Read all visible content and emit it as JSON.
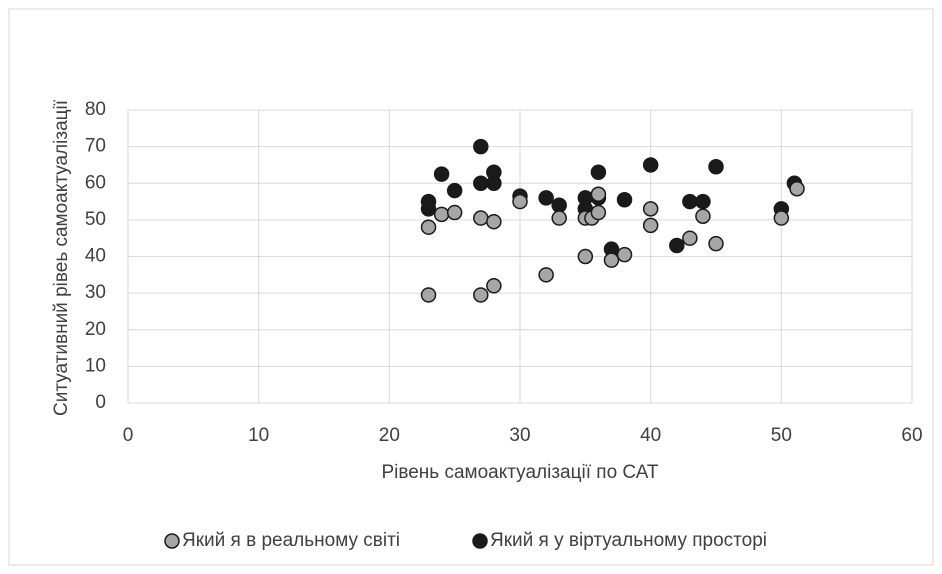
{
  "chart_data": {
    "type": "scatter",
    "xlabel": "Рівень самоактуалізації по САТ",
    "ylabel": "Ситуативний рівеь самоактуалізації",
    "xlim": [
      0,
      60
    ],
    "xticks": [
      0,
      10,
      20,
      30,
      40,
      50,
      60
    ],
    "ylim": [
      0,
      80
    ],
    "yticks": [
      0,
      10,
      20,
      30,
      40,
      50,
      60,
      70,
      80
    ],
    "grid": true,
    "legend": "bottom",
    "series": [
      {
        "name": "Який я в реальному світі",
        "color": "#a6a6a6",
        "x": [
          23,
          23,
          24,
          25,
          27,
          27,
          28,
          28,
          30,
          32,
          33,
          35,
          35,
          35.5,
          36,
          36,
          37,
          38,
          40,
          40,
          43,
          44,
          45,
          50,
          51.2
        ],
        "values": [
          29.5,
          48,
          51.5,
          52,
          29.5,
          50.5,
          32,
          49.5,
          55,
          35,
          50.5,
          40,
          50.5,
          50.5,
          57,
          52,
          39,
          40.5,
          48.5,
          53,
          45,
          51,
          43.5,
          50.5,
          58.5
        ]
      },
      {
        "name": "Який я у віртуальному просторі",
        "color": "#1a1a1a",
        "x": [
          23,
          23,
          24,
          25,
          27,
          27,
          28,
          28,
          30,
          32,
          33,
          35,
          35,
          36,
          36,
          37,
          38,
          40,
          42,
          43,
          44,
          45,
          50,
          51
        ],
        "values": [
          55,
          53,
          62.5,
          58,
          70,
          60,
          63,
          60,
          56.5,
          56,
          54,
          56,
          53,
          56,
          63,
          42,
          55.5,
          65,
          43,
          55,
          55,
          64.5,
          53,
          60
        ]
      }
    ]
  }
}
